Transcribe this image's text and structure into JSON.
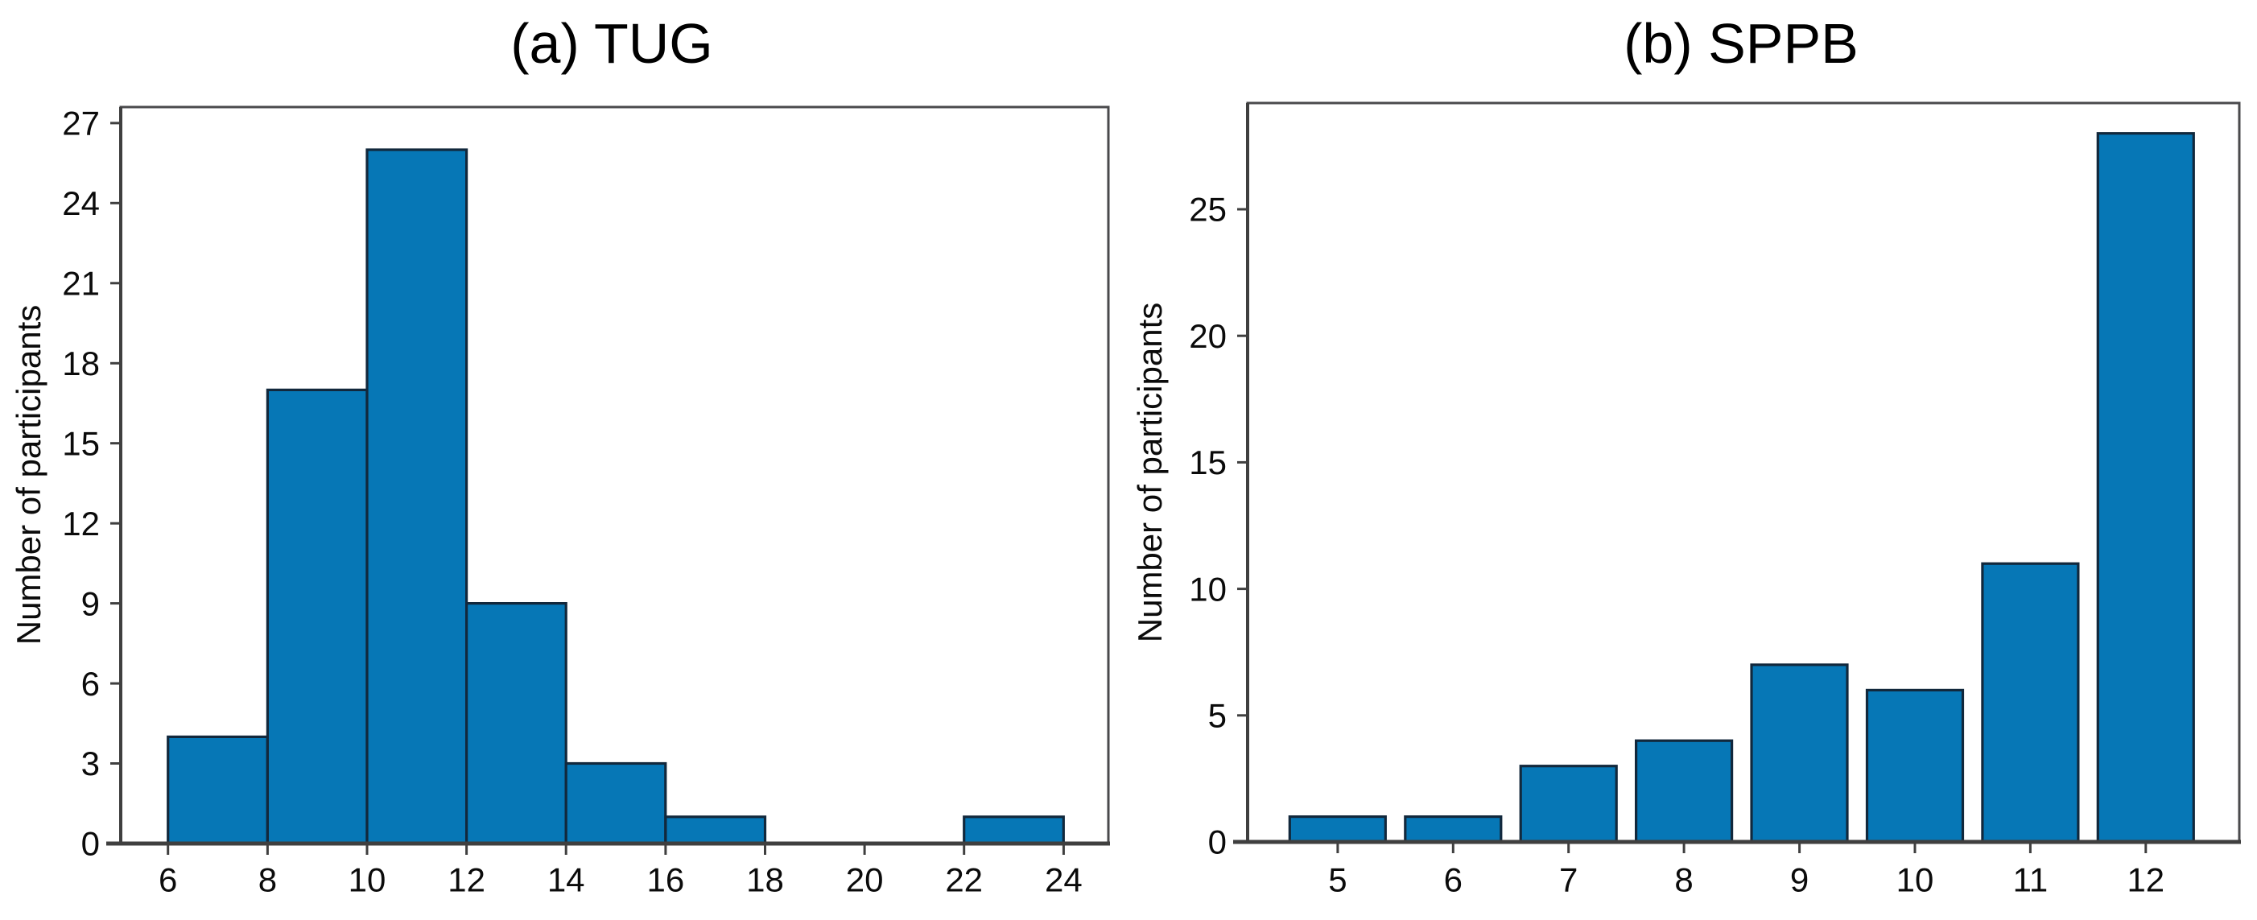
{
  "figure": {
    "background": "#ffffff",
    "bar_fill": "#0677b6",
    "bar_edge": "#12283c",
    "axis_color": "#4a4a4c",
    "axis_emphasis_color": "#3f3f3f",
    "text_color": "#0b0b0b"
  },
  "chart_data": [
    {
      "type": "bar",
      "subtype": "histogram",
      "panel": "a",
      "title": "(a) TUG",
      "xlabel": "",
      "ylabel": "Number of participants",
      "bin_edges": [
        6,
        8,
        10,
        12,
        14,
        16,
        18,
        20,
        22,
        24
      ],
      "values": [
        4,
        17,
        26,
        9,
        3,
        1,
        0,
        0,
        1
      ],
      "x_ticks": [
        6,
        8,
        10,
        12,
        14,
        16,
        18,
        20,
        22,
        24
      ],
      "y_ticks": [
        0,
        3,
        6,
        9,
        12,
        15,
        18,
        21,
        24,
        27
      ],
      "xlim": [
        5.05,
        24.9
      ],
      "ylim": [
        0,
        27.6
      ],
      "grid": false,
      "legend": "none"
    },
    {
      "type": "bar",
      "subtype": "categorical",
      "panel": "b",
      "title": "(b) SPPB",
      "xlabel": "",
      "ylabel": "Number of participants",
      "categories": [
        5,
        6,
        7,
        8,
        9,
        10,
        11,
        12
      ],
      "values": [
        1,
        1,
        3,
        4,
        7,
        6,
        11,
        28
      ],
      "y_ticks": [
        0,
        5,
        10,
        15,
        20,
        25
      ],
      "xlim": [
        4.22,
        12.81
      ],
      "ylim": [
        0,
        29.2
      ],
      "bar_rel_width": 0.83,
      "grid": false,
      "legend": "none"
    }
  ]
}
